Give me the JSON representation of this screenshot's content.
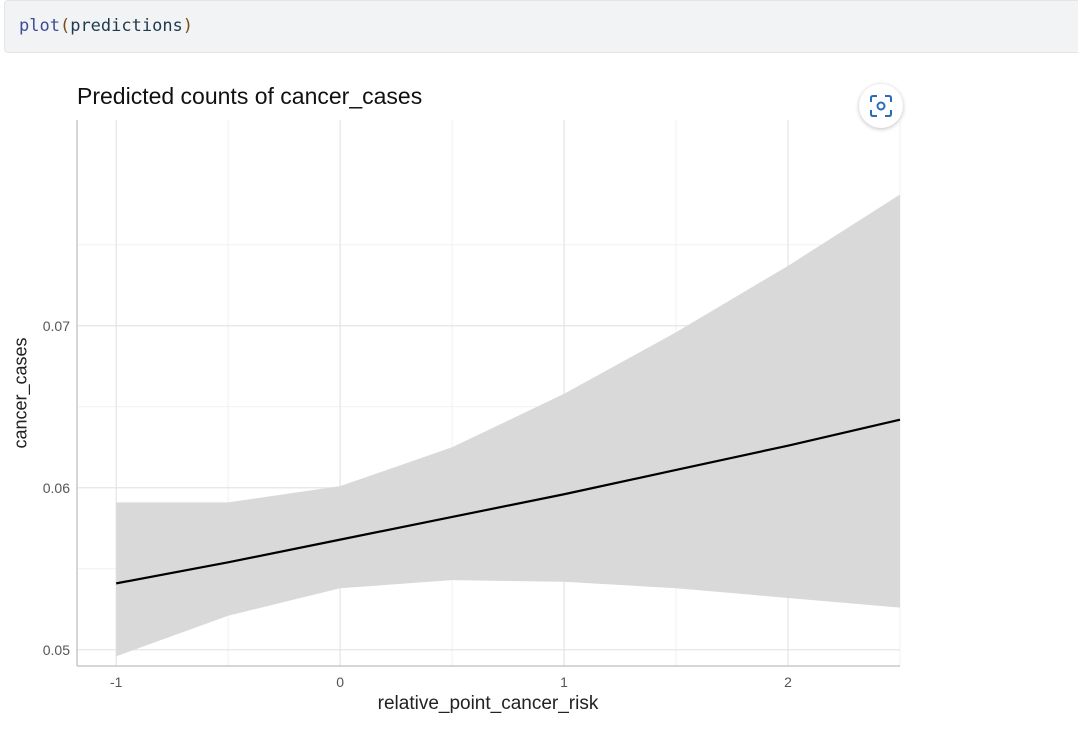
{
  "code_cell": {
    "fn": "plot",
    "open": "(",
    "arg": "predictions",
    "close": ")"
  },
  "chart_data": {
    "type": "line",
    "title": "Predicted counts of cancer_cases",
    "xlabel": "relative_point_cancer_risk",
    "ylabel": "cancer_cases",
    "xlim": [
      -1.175,
      2.5
    ],
    "ylim": [
      0.049,
      0.0827
    ],
    "x_ticks": [
      -1,
      0,
      1,
      2
    ],
    "x_tick_labels": [
      "-1",
      "0",
      "1",
      "2"
    ],
    "y_ticks": [
      0.05,
      0.06,
      0.07
    ],
    "y_tick_labels": [
      "0.05",
      "0.06",
      "0.07"
    ],
    "grid": true,
    "series": [
      {
        "x": [
          -1,
          -0.5,
          0,
          0.5,
          1,
          1.5,
          2,
          2.5
        ],
        "y": [
          0.0541,
          0.0554,
          0.0568,
          0.0582,
          0.0596,
          0.0611,
          0.0626,
          0.0642
        ],
        "ci_low": [
          0.0496,
          0.0521,
          0.0538,
          0.0543,
          0.0542,
          0.0538,
          0.0532,
          0.0526
        ],
        "ci_high": [
          0.0591,
          0.0591,
          0.0601,
          0.0625,
          0.0658,
          0.0696,
          0.0737,
          0.0781
        ],
        "line_color": "#000000",
        "band_color": "#d9d9d9"
      }
    ]
  }
}
